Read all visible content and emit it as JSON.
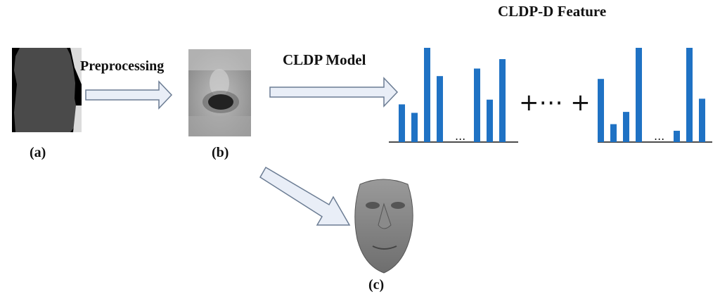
{
  "labels": {
    "preprocessing": "Preprocessing",
    "cldp_model": "CLDP Model",
    "feature_title": "CLDP-D Feature",
    "panel_a": "(a)",
    "panel_b": "(b)",
    "panel_c": "(c)",
    "plus_ellipsis": "+⋯ +",
    "hist_ellipsis": "..."
  },
  "colors": {
    "bar": "#1f72c4",
    "axis": "#111111",
    "arrow_fill": "#e9eef7",
    "arrow_stroke": "#6b7c93"
  },
  "images": {
    "panel_a": "depth-map-silhouette",
    "panel_b": "preprocessed-depth-crop",
    "panel_c": "3d-face-mesh"
  },
  "histograms": [
    {
      "left_group": [
        0.4,
        0.31,
        1.0,
        0.7
      ],
      "right_group": [
        0.78,
        0.45,
        0.88
      ]
    },
    {
      "left_group": [
        0.67,
        0.19,
        0.32,
        1.0
      ],
      "right_group": [
        0.12,
        1.0,
        0.46
      ]
    }
  ]
}
